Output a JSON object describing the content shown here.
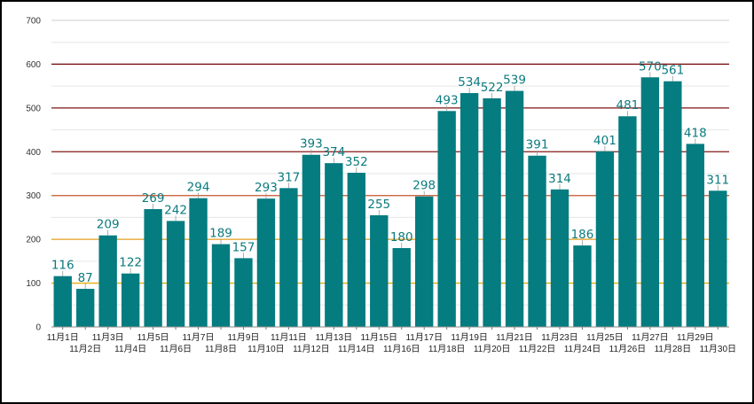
{
  "chart_data": {
    "type": "bar",
    "title": "",
    "xlabel": "",
    "ylabel": "",
    "ylim": [
      0,
      700
    ],
    "yticks": [
      0,
      100,
      200,
      300,
      400,
      500,
      600,
      700
    ],
    "grid": true,
    "legend": "none",
    "bar_color": "#047c80",
    "label_color": "#0b7a7e",
    "reference_lines": [
      {
        "value": 100,
        "color": "#e6b010"
      },
      {
        "value": 200,
        "color": "#e6a020"
      },
      {
        "value": 300,
        "color": "#c85a32"
      },
      {
        "value": 400,
        "color": "#8a1c1c"
      },
      {
        "value": 500,
        "color": "#801818"
      },
      {
        "value": 600,
        "color": "#7a1010"
      }
    ],
    "categories": [
      "11月1日",
      "11月2日",
      "11月3日",
      "11月4日",
      "11月5日",
      "11月6日",
      "11月7日",
      "11月8日",
      "11月9日",
      "11月10日",
      "11月11日",
      "11月12日",
      "11月13日",
      "11月14日",
      "11月15日",
      "11月16日",
      "11月17日",
      "11月18日",
      "11月19日",
      "11月20日",
      "11月21日",
      "11月22日",
      "11月23日",
      "11月24日",
      "11月25日",
      "11月26日",
      "11月27日",
      "11月28日",
      "11月29日",
      "11月30日"
    ],
    "values": [
      116,
      87,
      209,
      122,
      269,
      242,
      294,
      189,
      157,
      293,
      317,
      393,
      374,
      352,
      255,
      180,
      298,
      493,
      534,
      522,
      539,
      391,
      314,
      186,
      401,
      481,
      570,
      561,
      418,
      311
    ]
  }
}
